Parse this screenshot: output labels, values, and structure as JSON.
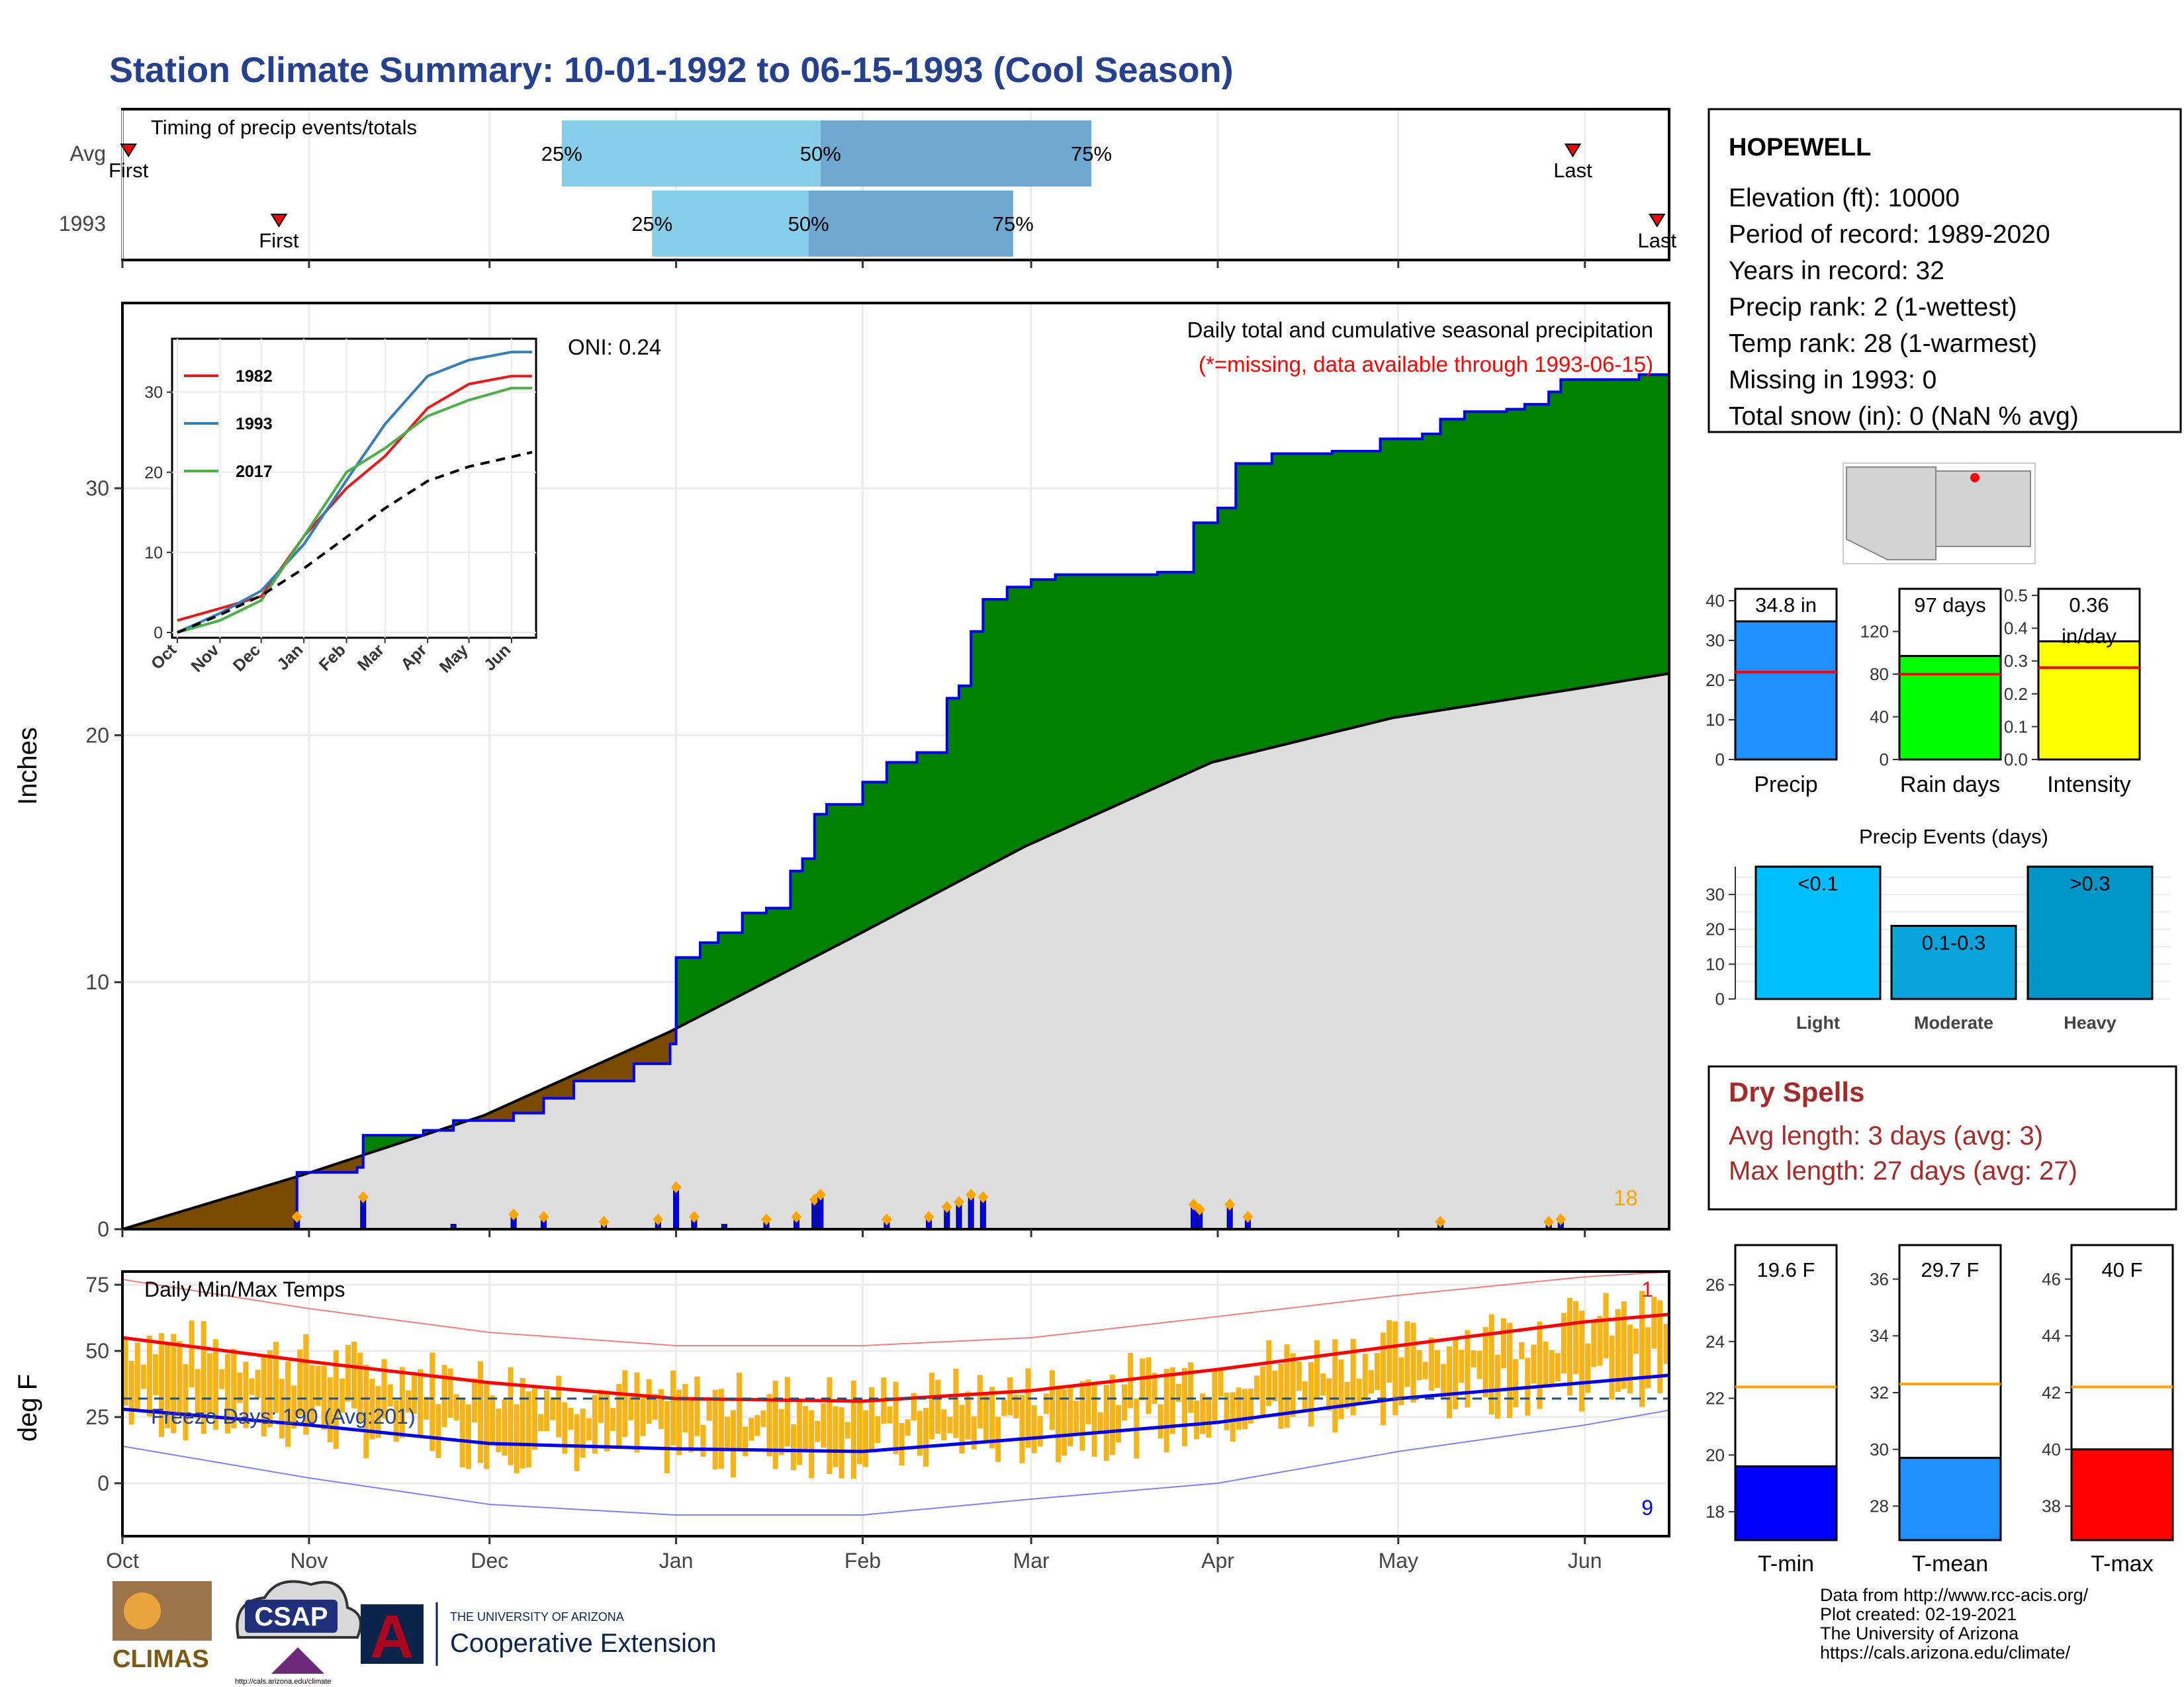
{
  "header": {
    "title": "Station Climate Summary: 10-01-1992 to 06-15-1993 (Cool Season)"
  },
  "colors": {
    "title": "#24408E",
    "precip_cum": "#008000",
    "precip_outline": "#0000EE",
    "normal_fill": "#DDDDDD",
    "deficit_fill": "#7A4A00",
    "temp_bar": "#F4B41A",
    "tmax_line": "#FF0000",
    "tmin_line": "#0000EE",
    "light": "#00BFFF",
    "moderate": "#0AA3DC",
    "heavy": "#0096C8",
    "dry_spell_text": "#A52A2A",
    "q_light": "#87CEEB",
    "q_dark": "#6FA8D0"
  },
  "chart_data": [
    {
      "id": "timing",
      "type": "bar",
      "title": "Timing of precip events/totals",
      "rows": [
        "Avg",
        "1993"
      ],
      "first_label": "First",
      "last_label": "Last",
      "quartile_labels": [
        "25%",
        "50%",
        "75%"
      ],
      "avg": {
        "first": "1992-10-02",
        "q25": "1992-12-13",
        "q50": "1993-01-25",
        "q75": "1993-03-11",
        "last": "1993-05-30"
      },
      "y1993": {
        "first": "1992-10-27",
        "q25": "1992-12-28",
        "q50": "1993-01-23",
        "q75": "1993-02-26",
        "last": "1993-06-13"
      }
    },
    {
      "id": "precip",
      "type": "area",
      "ylabel": "Inches",
      "ylim": [
        0,
        37.5
      ],
      "yticks": [
        0,
        10,
        20,
        30
      ],
      "xticks": [
        "Oct",
        "Nov",
        "Dec",
        "Jan",
        "Feb",
        "Mar",
        "Apr",
        "May",
        "Jun"
      ],
      "title": "Daily total and cumulative seasonal precipitation",
      "subtitle": "(*=missing, data available through 1993-06-15)",
      "oni_label": "ONI: 0.24",
      "count_label": "18",
      "cumulative_1993": [
        [
          "1992-10-01",
          0
        ],
        [
          "1992-10-30",
          2.3
        ],
        [
          "1992-11-09",
          2.5
        ],
        [
          "1992-11-10",
          3.8
        ],
        [
          "1992-11-20",
          4.0
        ],
        [
          "1992-11-25",
          4.4
        ],
        [
          "1992-12-05",
          4.7
        ],
        [
          "1992-12-10",
          5.3
        ],
        [
          "1992-12-15",
          6.0
        ],
        [
          "1992-12-25",
          6.7
        ],
        [
          "1992-12-31",
          7.5
        ],
        [
          "1993-01-01",
          11.0
        ],
        [
          "1993-01-05",
          11.6
        ],
        [
          "1993-01-08",
          12.0
        ],
        [
          "1993-01-12",
          12.8
        ],
        [
          "1993-01-16",
          13.0
        ],
        [
          "1993-01-20",
          14.5
        ],
        [
          "1993-01-22",
          15.0
        ],
        [
          "1993-01-24",
          16.8
        ],
        [
          "1993-01-26",
          17.2
        ],
        [
          "1993-02-01",
          18.1
        ],
        [
          "1993-02-05",
          18.9
        ],
        [
          "1993-02-10",
          19.3
        ],
        [
          "1993-02-15",
          21.5
        ],
        [
          "1993-02-17",
          22.0
        ],
        [
          "1993-02-19",
          24.2
        ],
        [
          "1993-02-21",
          25.5
        ],
        [
          "1993-02-25",
          26.0
        ],
        [
          "1993-03-01",
          26.3
        ],
        [
          "1993-03-05",
          26.5
        ],
        [
          "1993-03-22",
          26.6
        ],
        [
          "1993-03-28",
          28.6
        ],
        [
          "1993-04-01",
          29.2
        ],
        [
          "1993-04-04",
          31.0
        ],
        [
          "1993-04-10",
          31.4
        ],
        [
          "1993-04-20",
          31.5
        ],
        [
          "1993-04-28",
          32.0
        ],
        [
          "1993-05-05",
          32.2
        ],
        [
          "1993-05-08",
          32.8
        ],
        [
          "1993-05-12",
          33.1
        ],
        [
          "1993-05-19",
          33.2
        ],
        [
          "1993-05-22",
          33.4
        ],
        [
          "1993-05-26",
          33.9
        ],
        [
          "1993-05-28",
          34.4
        ],
        [
          "1993-06-10",
          34.6
        ],
        [
          "1993-06-15",
          34.8
        ]
      ],
      "normal_cumulative": [
        [
          "1992-10-01",
          0
        ],
        [
          "1992-10-31",
          2.2
        ],
        [
          "1992-11-30",
          4.6
        ],
        [
          "1992-12-31",
          8.0
        ],
        [
          "1993-01-31",
          11.9
        ],
        [
          "1993-02-28",
          15.5
        ],
        [
          "1993-03-31",
          18.9
        ],
        [
          "1993-04-30",
          20.7
        ],
        [
          "1993-05-31",
          21.9
        ],
        [
          "1993-06-15",
          22.5
        ]
      ],
      "daily_precip": [
        [
          "1992-10-30",
          0.5
        ],
        [
          "1992-11-10",
          1.3
        ],
        [
          "1992-11-25",
          0.2
        ],
        [
          "1992-12-05",
          0.6
        ],
        [
          "1992-12-10",
          0.5
        ],
        [
          "1992-12-20",
          0.3
        ],
        [
          "1992-12-29",
          0.4
        ],
        [
          "1993-01-01",
          1.7
        ],
        [
          "1993-01-04",
          0.5
        ],
        [
          "1993-01-09",
          0.2
        ],
        [
          "1993-01-16",
          0.4
        ],
        [
          "1993-01-21",
          0.5
        ],
        [
          "1993-01-24",
          1.2
        ],
        [
          "1993-01-25",
          1.4
        ],
        [
          "1993-02-05",
          0.4
        ],
        [
          "1993-02-12",
          0.5
        ],
        [
          "1993-02-15",
          0.9
        ],
        [
          "1993-02-17",
          1.1
        ],
        [
          "1993-02-19",
          1.4
        ],
        [
          "1993-02-21",
          1.3
        ],
        [
          "1993-03-28",
          1.0
        ],
        [
          "1993-03-29",
          0.8
        ],
        [
          "1993-04-03",
          1.0
        ],
        [
          "1993-04-06",
          0.5
        ],
        [
          "1993-05-08",
          0.3
        ],
        [
          "1993-05-26",
          0.3
        ],
        [
          "1993-05-28",
          0.4
        ]
      ]
    },
    {
      "id": "inset",
      "type": "line",
      "ylim": [
        0,
        36
      ],
      "yticks": [
        0,
        10,
        20,
        30
      ],
      "xticks": [
        "Oct",
        "Nov",
        "Dec",
        "Jan",
        "Feb",
        "Mar",
        "Apr",
        "May",
        "Jun"
      ],
      "series": [
        {
          "name": "1982",
          "color": "#E41A1C",
          "months": [
            0,
            1,
            2,
            3,
            4,
            5,
            6,
            7,
            8,
            8.5
          ],
          "values": [
            1.5,
            3.0,
            4.5,
            12,
            18,
            22,
            28,
            31,
            32,
            32
          ]
        },
        {
          "name": "1993",
          "color": "#377EB8",
          "months": [
            0,
            1,
            2,
            3,
            4,
            5,
            6,
            7,
            8,
            8.5
          ],
          "values": [
            0,
            2.4,
            5.2,
            11,
            19,
            26,
            32,
            34,
            35,
            35
          ]
        },
        {
          "name": "2017",
          "color": "#4DAF4A",
          "months": [
            0,
            1,
            2,
            3,
            4,
            5,
            6,
            7,
            8,
            8.5
          ],
          "values": [
            0,
            1.5,
            4.0,
            12,
            20,
            23,
            27,
            29,
            30.5,
            30.5
          ]
        },
        {
          "name": "",
          "color": "#000000",
          "dashed": true,
          "months": [
            0,
            1,
            2,
            3,
            4,
            5,
            6,
            7,
            8,
            8.5
          ],
          "values": [
            0,
            2.2,
            4.6,
            8.0,
            11.9,
            15.5,
            18.9,
            20.7,
            21.9,
            22.5
          ]
        }
      ]
    },
    {
      "id": "temps",
      "type": "bar",
      "title": "Daily Min/Max Temps",
      "ylabel": "deg F",
      "ylim": [
        -20,
        80
      ],
      "yticks": [
        0,
        25,
        50,
        75
      ],
      "xticks": [
        "Oct",
        "Nov",
        "Dec",
        "Jan",
        "Feb",
        "Mar",
        "Apr",
        "May",
        "Jun"
      ],
      "freeze_label": "Freeze Days: 190 (Avg:201)",
      "freeze_line": 32,
      "record_high_count": "1",
      "record_low_count": "9",
      "avg_max": [
        [
          0,
          55
        ],
        [
          1,
          46
        ],
        [
          2,
          38
        ],
        [
          3,
          32
        ],
        [
          4,
          31
        ],
        [
          5,
          35
        ],
        [
          6,
          43
        ],
        [
          7,
          52
        ],
        [
          8,
          61
        ],
        [
          8.5,
          64
        ]
      ],
      "avg_min": [
        [
          0,
          28
        ],
        [
          1,
          22
        ],
        [
          2,
          15
        ],
        [
          3,
          13
        ],
        [
          4,
          12
        ],
        [
          5,
          17
        ],
        [
          6,
          23
        ],
        [
          7,
          32
        ],
        [
          8,
          38
        ],
        [
          8.5,
          41
        ]
      ],
      "rec_max": [
        [
          0,
          77
        ],
        [
          1,
          66
        ],
        [
          2,
          57
        ],
        [
          3,
          52
        ],
        [
          4,
          52
        ],
        [
          5,
          55
        ],
        [
          6,
          63
        ],
        [
          7,
          71
        ],
        [
          8,
          78
        ],
        [
          8.5,
          80
        ]
      ],
      "rec_min": [
        [
          0,
          14
        ],
        [
          1,
          2
        ],
        [
          2,
          -8
        ],
        [
          3,
          -12
        ],
        [
          4,
          -12
        ],
        [
          5,
          -6
        ],
        [
          6,
          0
        ],
        [
          7,
          12
        ],
        [
          8,
          22
        ],
        [
          8.5,
          28
        ]
      ]
    }
  ],
  "station": {
    "name": "HOPEWELL",
    "lines": [
      "Elevation (ft): 10000",
      "Period of record: 1989-2020",
      "Years in record: 32",
      "Precip rank: 2 (1-wettest)",
      "Temp rank: 28 (1-warmest)",
      "Missing in 1993: 0",
      "Total snow (in): 0 (NaN % avg)"
    ]
  },
  "summary_bars": [
    {
      "label": "Precip",
      "value": 34.8,
      "display": "34.8 in",
      "avg": 22,
      "ymax": 43,
      "ticks": [
        0,
        10,
        20,
        30,
        40
      ],
      "color": "#1E90FF"
    },
    {
      "label": "Rain days",
      "value": 97,
      "display": "97 days",
      "avg": 80,
      "ymax": 160,
      "ticks": [
        0,
        40,
        80,
        120
      ],
      "color": "#00FF00"
    },
    {
      "label": "Intensity",
      "value": 0.36,
      "display": "0.36",
      "display2": "in/day",
      "avg": 0.28,
      "ymax": 0.52,
      "ticks": [
        0.0,
        0.1,
        0.2,
        0.3,
        0.4,
        0.5
      ],
      "tick_labels": [
        "0.0",
        "0.1",
        "0.2",
        "0.3",
        "0.4",
        "0.5"
      ],
      "color": "#FFFF00"
    }
  ],
  "events": {
    "title": "Precip Events (days)",
    "ylim": [
      0,
      38
    ],
    "yticks": [
      0,
      10,
      20,
      30
    ],
    "categories": [
      "Light",
      "Moderate",
      "Heavy"
    ],
    "bar_labels": [
      "<0.1",
      "0.1-0.3",
      ">0.3"
    ],
    "values": [
      38,
      21,
      38
    ]
  },
  "dry_spells": {
    "title": "Dry Spells",
    "avg_line": "Avg length: 3 days (avg: 3)",
    "max_line": "Max length: 27 days (avg: 27)"
  },
  "temp_bars": [
    {
      "label": "T-min",
      "display": "19.6 F",
      "value": 19.6,
      "avg": 22.4,
      "ylim": [
        17,
        27.4
      ],
      "ticks": [
        18,
        20,
        22,
        24,
        26
      ],
      "color": "#0000FF"
    },
    {
      "label": "T-mean",
      "display": "29.7 F",
      "value": 29.7,
      "avg": 32.3,
      "ylim": [
        26.8,
        37.2
      ],
      "ticks": [
        28,
        30,
        32,
        34,
        36
      ],
      "color": "#1E90FF"
    },
    {
      "label": "T-max",
      "display": "40 F",
      "value": 40.0,
      "avg": 42.2,
      "ylim": [
        36.8,
        47.2
      ],
      "ticks": [
        38,
        40,
        42,
        44,
        46
      ],
      "color": "#FF0000"
    }
  ],
  "footer": {
    "lines": [
      "Data from http://www.rcc-acis.org/",
      "Plot created: 02-19-2021",
      "The University of Arizona",
      "https://cals.arizona.edu/climate/"
    ],
    "logos": {
      "climas": "CLIMAS",
      "csap": "CSAP",
      "csap_url": "http://cals.arizona.edu/climate",
      "ua_small": "THE UNIVERSITY OF ARIZONA",
      "ua_big": "Cooperative Extension"
    }
  }
}
